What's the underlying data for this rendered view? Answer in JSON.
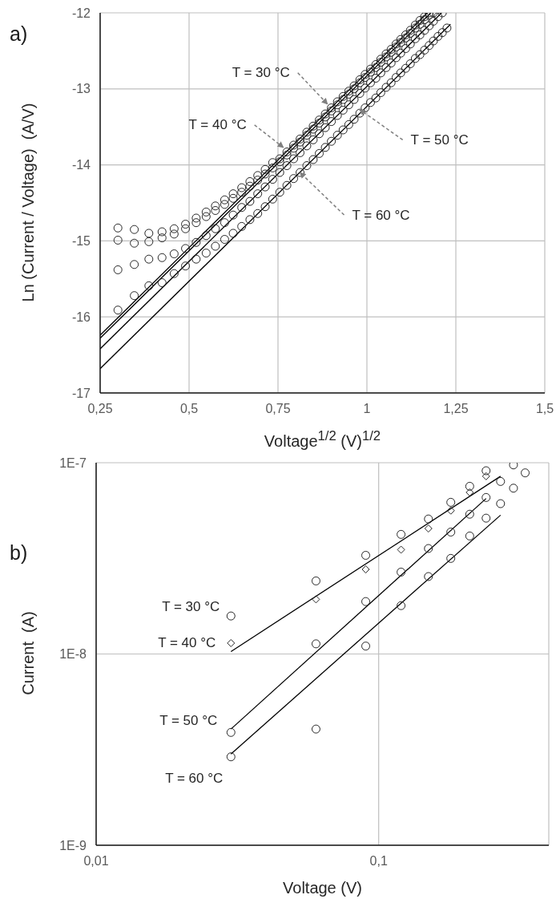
{
  "chart_data": [
    {
      "type": "scatter",
      "title": "a)",
      "xlabel": "Voltage$^{1/2}$ (V)$^{1/2}$",
      "ylabel": "Ln (Current / Voltage)  (A/V)",
      "xlim": [
        0.25,
        1.5
      ],
      "xticks": [
        {
          "value": 0.25,
          "label": "0,25"
        },
        {
          "value": 0.5,
          "label": "0,5"
        },
        {
          "value": 0.75,
          "label": "0,75"
        },
        1,
        {
          "value": 1.25,
          "label": "1,25"
        },
        {
          "value": 1.5,
          "label": "1,5"
        }
      ],
      "ylim": [
        -17,
        -12
      ],
      "yticks": [
        -17,
        -16,
        -15,
        -14,
        -13,
        -12
      ],
      "grid": true,
      "marker": "circle",
      "series": [
        {
          "color": "#262626",
          "x": [
            0.3,
            0.346,
            0.387,
            0.424,
            0.458,
            0.49,
            0.52,
            0.548,
            0.574,
            0.6,
            0.624,
            0.648,
            0.671,
            0.693,
            0.714,
            0.735,
            0.755,
            0.775,
            0.794,
            0.812,
            0.831,
            0.849,
            0.866,
            0.883,
            0.9,
            0.917,
            0.933,
            0.949,
            0.964,
            0.98,
            0.995,
            1.01,
            1.025,
            1.039,
            1.054,
            1.068,
            1.082,
            1.095,
            1.109,
            1.122,
            1.136,
            1.149,
            1.162,
            1.175
          ],
          "values": [
            -14.83,
            -14.85,
            -14.9,
            -14.88,
            -14.84,
            -14.78,
            -14.7,
            -14.62,
            -14.54,
            -14.46,
            -14.38,
            -14.3,
            -14.22,
            -14.14,
            -14.06,
            -13.97,
            -13.92,
            -13.83,
            -13.74,
            -13.66,
            -13.57,
            -13.49,
            -13.41,
            -13.33,
            -13.25,
            -13.17,
            -13.1,
            -13.03,
            -12.96,
            -12.88,
            -12.81,
            -12.74,
            -12.68,
            -12.61,
            -12.54,
            -12.48,
            -12.41,
            -12.35,
            -12.29,
            -12.23,
            -12.16,
            -12.1,
            -12.05,
            -12.0
          ]
        },
        {
          "color": "#262626",
          "x": [
            0.3,
            0.346,
            0.387,
            0.424,
            0.458,
            0.49,
            0.52,
            0.548,
            0.574,
            0.6,
            0.624,
            0.648,
            0.671,
            0.693,
            0.714,
            0.735,
            0.755,
            0.775,
            0.794,
            0.812,
            0.831,
            0.849,
            0.866,
            0.883,
            0.9,
            0.917,
            0.933,
            0.949,
            0.964,
            0.98,
            0.995,
            1.01,
            1.025,
            1.039,
            1.054,
            1.068,
            1.082,
            1.095,
            1.109,
            1.122,
            1.136,
            1.149,
            1.162,
            1.175,
            1.187
          ],
          "values": [
            -14.99,
            -15.03,
            -15.01,
            -14.96,
            -14.91,
            -14.84,
            -14.76,
            -14.68,
            -14.6,
            -14.52,
            -14.44,
            -14.36,
            -14.28,
            -14.2,
            -14.12,
            -14.04,
            -13.96,
            -13.87,
            -13.78,
            -13.7,
            -13.61,
            -13.53,
            -13.45,
            -13.37,
            -13.29,
            -13.21,
            -13.14,
            -13.07,
            -13.0,
            -12.92,
            -12.85,
            -12.78,
            -12.72,
            -12.65,
            -12.58,
            -12.52,
            -12.45,
            -12.39,
            -12.33,
            -12.27,
            -12.2,
            -12.15,
            -12.09,
            -12.03,
            -12.0
          ]
        },
        {
          "color": "#262626",
          "x": [
            0.3,
            0.346,
            0.387,
            0.424,
            0.458,
            0.49,
            0.52,
            0.548,
            0.574,
            0.6,
            0.624,
            0.648,
            0.671,
            0.693,
            0.714,
            0.735,
            0.755,
            0.775,
            0.794,
            0.812,
            0.831,
            0.849,
            0.866,
            0.883,
            0.9,
            0.917,
            0.933,
            0.949,
            0.964,
            0.98,
            0.995,
            1.01,
            1.025,
            1.039,
            1.054,
            1.068,
            1.082,
            1.095,
            1.109,
            1.122,
            1.136,
            1.149,
            1.162,
            1.175,
            1.187,
            1.2,
            1.212
          ],
          "values": [
            -15.38,
            -15.31,
            -15.24,
            -15.22,
            -15.17,
            -15.1,
            -15.02,
            -14.93,
            -14.84,
            -14.76,
            -14.66,
            -14.56,
            -14.48,
            -14.38,
            -14.29,
            -14.19,
            -14.1,
            -14.01,
            -13.92,
            -13.84,
            -13.75,
            -13.67,
            -13.59,
            -13.51,
            -13.43,
            -13.35,
            -13.28,
            -13.21,
            -13.14,
            -13.06,
            -12.99,
            -12.92,
            -12.86,
            -12.79,
            -12.72,
            -12.66,
            -12.59,
            -12.53,
            -12.47,
            -12.41,
            -12.34,
            -12.29,
            -12.23,
            -12.17,
            -12.11,
            -12.05,
            -12.0
          ]
        },
        {
          "color": "#262626",
          "x": [
            0.3,
            0.346,
            0.387,
            0.424,
            0.458,
            0.49,
            0.52,
            0.548,
            0.574,
            0.6,
            0.624,
            0.648,
            0.671,
            0.693,
            0.714,
            0.735,
            0.755,
            0.775,
            0.794,
            0.812,
            0.831,
            0.849,
            0.866,
            0.883,
            0.9,
            0.917,
            0.933,
            0.949,
            0.964,
            0.98,
            0.995,
            1.01,
            1.025,
            1.039,
            1.054,
            1.068,
            1.082,
            1.095,
            1.109,
            1.122,
            1.136,
            1.149,
            1.162,
            1.175,
            1.187,
            1.2,
            1.212,
            1.225
          ],
          "values": [
            -15.91,
            -15.72,
            -15.59,
            -15.55,
            -15.43,
            -15.33,
            -15.24,
            -15.16,
            -15.07,
            -14.98,
            -14.9,
            -14.81,
            -14.72,
            -14.64,
            -14.55,
            -14.45,
            -14.36,
            -14.27,
            -14.18,
            -14.1,
            -14.01,
            -13.93,
            -13.85,
            -13.77,
            -13.69,
            -13.61,
            -13.54,
            -13.47,
            -13.4,
            -13.32,
            -13.25,
            -13.18,
            -13.12,
            -13.05,
            -12.98,
            -12.92,
            -12.85,
            -12.79,
            -12.73,
            -12.67,
            -12.6,
            -12.55,
            -12.49,
            -12.43,
            -12.37,
            -12.31,
            -12.26,
            -12.2
          ]
        },
        {
          "type": "line",
          "marker": "none",
          "color": "#000000",
          "x": [
            0.25,
            1.17
          ],
          "values": [
            -16.24,
            -12.0
          ]
        },
        {
          "type": "line",
          "marker": "none",
          "color": "#000000",
          "x": [
            0.25,
            1.18
          ],
          "values": [
            -16.28,
            -12.0
          ]
        },
        {
          "type": "line",
          "marker": "none",
          "color": "#000000",
          "x": [
            0.25,
            1.21
          ],
          "values": [
            -16.42,
            -12.0
          ]
        },
        {
          "type": "line",
          "marker": "none",
          "color": "#000000",
          "x": [
            0.25,
            1.235
          ],
          "values": [
            -16.68,
            -12.15
          ]
        }
      ],
      "annotations": [
        {
          "text": "T = 30 °C",
          "x": 0.889,
          "y": -13.2
        },
        {
          "text": "T = 40 °C",
          "x": 0.765,
          "y": -13.77
        },
        {
          "text": "T = 50 °C",
          "x": 0.979,
          "y": -13.27
        },
        {
          "text": "T = 60 °C",
          "x": 0.812,
          "y": -14.1
        }
      ]
    },
    {
      "type": "scatter",
      "title": "b)",
      "xlabel": "Voltage (V)",
      "ylabel": "Current  (A)",
      "log": "xy",
      "xlim": [
        0.01,
        0.4
      ],
      "xticks": [
        {
          "value": 0.01,
          "label": "0,01"
        },
        {
          "value": 0.1,
          "label": "0,1"
        }
      ],
      "ylim": [
        1e-09,
        1e-07
      ],
      "yticks": [
        {
          "value": 1e-09,
          "label": "1E-9"
        },
        {
          "value": 1e-08,
          "label": "1E-8"
        },
        {
          "value": 1e-07,
          "label": "1E-7"
        }
      ],
      "grid": true,
      "marker": "circle",
      "series": [
        {
          "color": "#262626",
          "x": [
            0.03,
            0.06,
            0.09,
            0.12,
            0.15,
            0.18,
            0.21,
            0.24
          ],
          "values": [
            1.58e-08,
            2.41e-08,
            3.28e-08,
            4.22e-08,
            5.08e-08,
            6.21e-08,
            7.53e-08,
            9.08e-08
          ]
        },
        {
          "marker": "diamond",
          "color": "#262626",
          "x": [
            0.03,
            0.06,
            0.09,
            0.12,
            0.15,
            0.18,
            0.21,
            0.24
          ],
          "values": [
            1.14e-08,
            1.93e-08,
            2.77e-08,
            3.51e-08,
            4.53e-08,
            5.62e-08,
            7e-08,
            8.5e-08
          ]
        },
        {
          "color": "#262626",
          "x": [
            0.03,
            0.06,
            0.09,
            0.12,
            0.15,
            0.18,
            0.21,
            0.24,
            0.27,
            0.3
          ],
          "values": [
            3.89e-09,
            1.13e-08,
            1.88e-08,
            2.68e-08,
            3.56e-08,
            4.34e-08,
            5.38e-08,
            6.58e-08,
            7.98e-08,
            9.74e-08
          ]
        },
        {
          "color": "#262626",
          "x": [
            0.03,
            0.06,
            0.09,
            0.12,
            0.15,
            0.18,
            0.21,
            0.24,
            0.27,
            0.3,
            0.33
          ],
          "values": [
            2.9e-09,
            4.05e-09,
            1.1e-08,
            1.79e-08,
            2.54e-08,
            3.16e-08,
            4.14e-08,
            5.13e-08,
            6.11e-08,
            7.36e-08,
            8.85e-08
          ]
        },
        {
          "type": "line",
          "marker": "none",
          "color": "#000000",
          "x": [
            0.03,
            0.27
          ],
          "values": [
            1.03e-08,
            8.5e-08
          ]
        },
        {
          "type": "line",
          "marker": "none",
          "color": "#000000",
          "x": [
            0.03,
            0.24
          ],
          "values": [
            4.05e-09,
            6.5e-08
          ]
        },
        {
          "type": "line",
          "marker": "none",
          "color": "#000000",
          "x": [
            0.03,
            0.27
          ],
          "values": [
            3e-09,
            5.32e-08
          ]
        }
      ],
      "annotations": [
        {
          "text": "T = 30 °C",
          "x": 0.03,
          "y": 1.58e-08
        },
        {
          "text": "T = 40 °C",
          "x": 0.03,
          "y": 1.14e-08
        },
        {
          "text": "T = 50 °C",
          "x": 0.03,
          "y": 3.89e-09
        },
        {
          "text": "T = 60 °C",
          "x": 0.03,
          "y": 2.9e-09
        }
      ]
    }
  ]
}
